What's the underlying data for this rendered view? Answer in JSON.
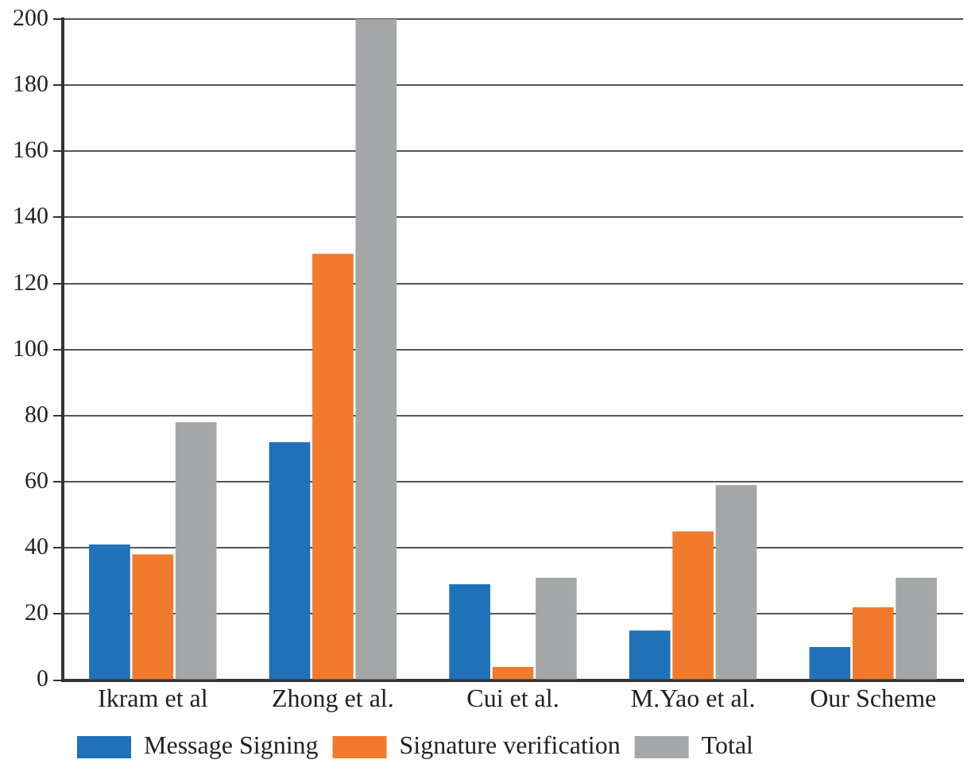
{
  "chart_data": {
    "type": "bar",
    "categories": [
      "Ikram et al",
      "Zhong et al.",
      "Cui et al.",
      "M.Yao et al.",
      "Our Scheme"
    ],
    "series": [
      {
        "name": "Message Signing",
        "color": "#1f71b8",
        "values": [
          41,
          72,
          29,
          15,
          10
        ]
      },
      {
        "name": "Signature verification",
        "color": "#f27a2c",
        "values": [
          38,
          129,
          4,
          45,
          22
        ]
      },
      {
        "name": "Total",
        "color": "#a5a6a8",
        "values": [
          78,
          200,
          31,
          59,
          31
        ]
      }
    ],
    "ylim": [
      0,
      200
    ],
    "yticks": [
      0,
      20,
      40,
      60,
      80,
      100,
      120,
      140,
      160,
      180,
      200
    ],
    "grid": "y",
    "legend": "bottom left"
  }
}
